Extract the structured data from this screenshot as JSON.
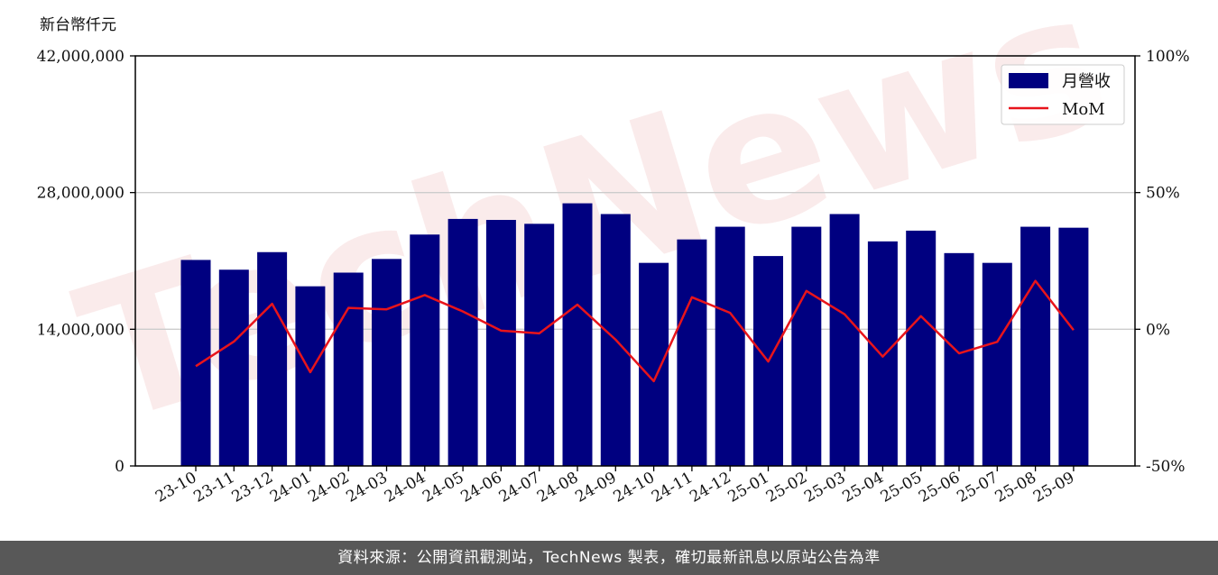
{
  "watermark": "TechNews",
  "footer": {
    "source": "資料來源：公開資訊觀測站，TechNews 製表，確切最新訊息以原站公告為準"
  },
  "colors": {
    "bar": "#000080",
    "line": "#e8141b",
    "grid": "#cccccc",
    "footer_bg": "#585858"
  },
  "chart_data": {
    "type": "bar",
    "ylabel_left": "新台幣仟元",
    "ylim_left": [
      0,
      42000000
    ],
    "yticks_left": [
      0,
      14000000,
      28000000,
      42000000
    ],
    "yticklabels_left": [
      "0",
      "14,000,000",
      "28,000,000",
      "42,000,000"
    ],
    "ylim_right": [
      -50,
      100
    ],
    "yticks_right": [
      -50,
      0,
      50,
      100
    ],
    "yticklabels_right": [
      "-50%",
      "0%",
      "50%",
      "100%"
    ],
    "grid": "horizontal",
    "legend_position": "top-right",
    "categories": [
      "23-10",
      "23-11",
      "23-12",
      "24-01",
      "24-02",
      "24-03",
      "24-04",
      "24-05",
      "24-06",
      "24-07",
      "24-08",
      "24-09",
      "24-10",
      "24-11",
      "24-12",
      "25-01",
      "25-02",
      "25-03",
      "25-04",
      "25-05",
      "25-06",
      "25-07",
      "25-08",
      "25-09"
    ],
    "series": [
      {
        "name": "月營收",
        "type": "bar",
        "axis": "left",
        "values": [
          21100000,
          20100000,
          21900000,
          18400000,
          19800000,
          21200000,
          23700000,
          25300000,
          25200000,
          24800000,
          26900000,
          25800000,
          20800000,
          23200000,
          24500000,
          21500000,
          24500000,
          25800000,
          23000000,
          24100000,
          21800000,
          20800000,
          24500000,
          24400000
        ]
      },
      {
        "name": "MoM",
        "type": "line",
        "axis": "right",
        "values": [
          -13.5,
          -4.5,
          9.3,
          -15.7,
          7.8,
          7.3,
          12.5,
          6.5,
          -0.5,
          -1.5,
          9.0,
          -3.8,
          -19.0,
          11.7,
          6.0,
          -11.8,
          14.0,
          5.5,
          -10.0,
          4.8,
          -8.8,
          -4.6,
          17.7,
          -0.3
        ]
      }
    ]
  }
}
